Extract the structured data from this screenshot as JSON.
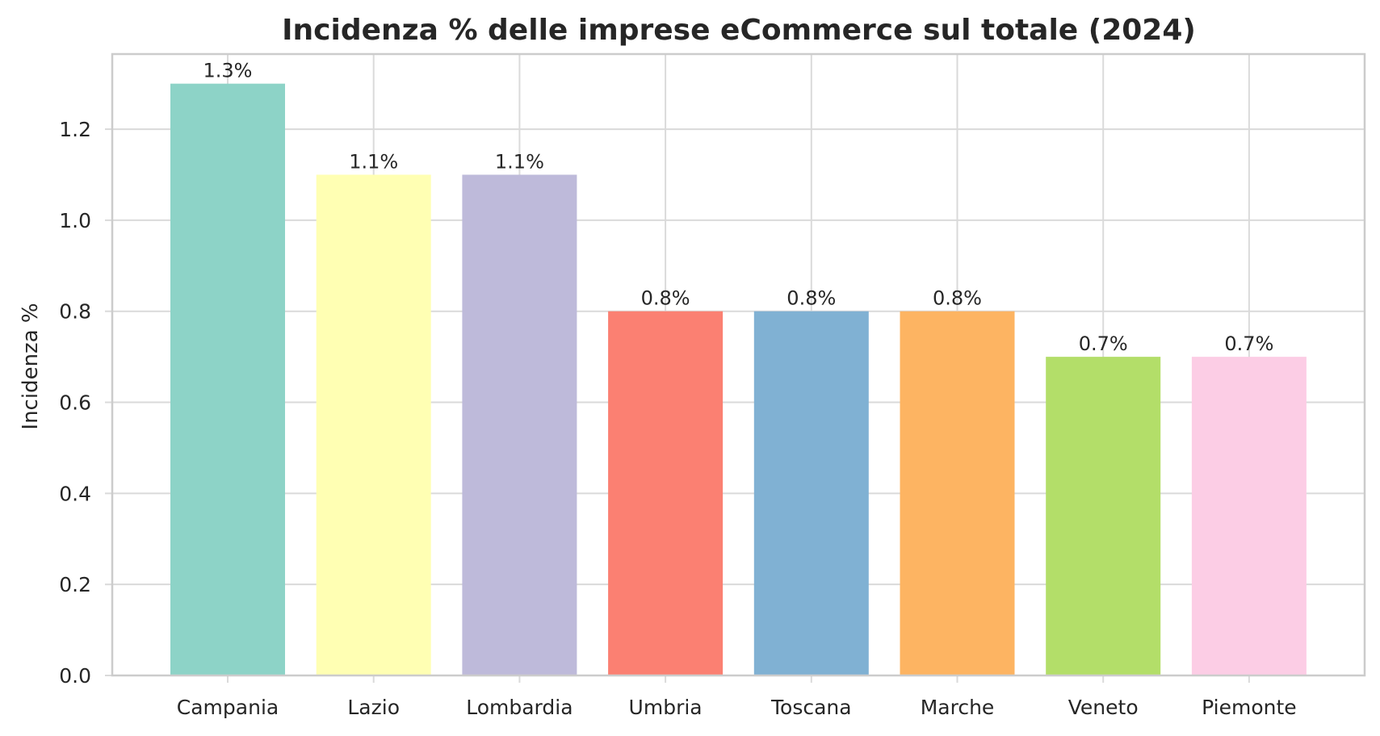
{
  "chart_data": {
    "type": "bar",
    "title": "Incidenza % delle imprese eCommerce sul totale (2024)",
    "xlabel": "",
    "ylabel": "Incidenza %",
    "categories": [
      "Campania",
      "Lazio",
      "Lombardia",
      "Umbria",
      "Toscana",
      "Marche",
      "Veneto",
      "Piemonte"
    ],
    "values": [
      1.3,
      1.1,
      1.1,
      0.8,
      0.8,
      0.8,
      0.7,
      0.7
    ],
    "data_labels": [
      "1.3%",
      "1.1%",
      "1.1%",
      "0.8%",
      "0.8%",
      "0.8%",
      "0.7%",
      "0.7%"
    ],
    "colors": [
      "#8dd3c7",
      "#ffffb3",
      "#bebada",
      "#fb8072",
      "#80b1d3",
      "#fdb462",
      "#b3de69",
      "#fccde5"
    ],
    "ylim": [
      0,
      1.365
    ],
    "yticks": [
      0.0,
      0.2,
      0.4,
      0.6,
      0.8,
      1.0,
      1.2
    ],
    "ytick_labels": [
      "0.0",
      "0.2",
      "0.4",
      "0.6",
      "0.8",
      "1.0",
      "1.2"
    ],
    "grid": true,
    "legend": "none"
  }
}
